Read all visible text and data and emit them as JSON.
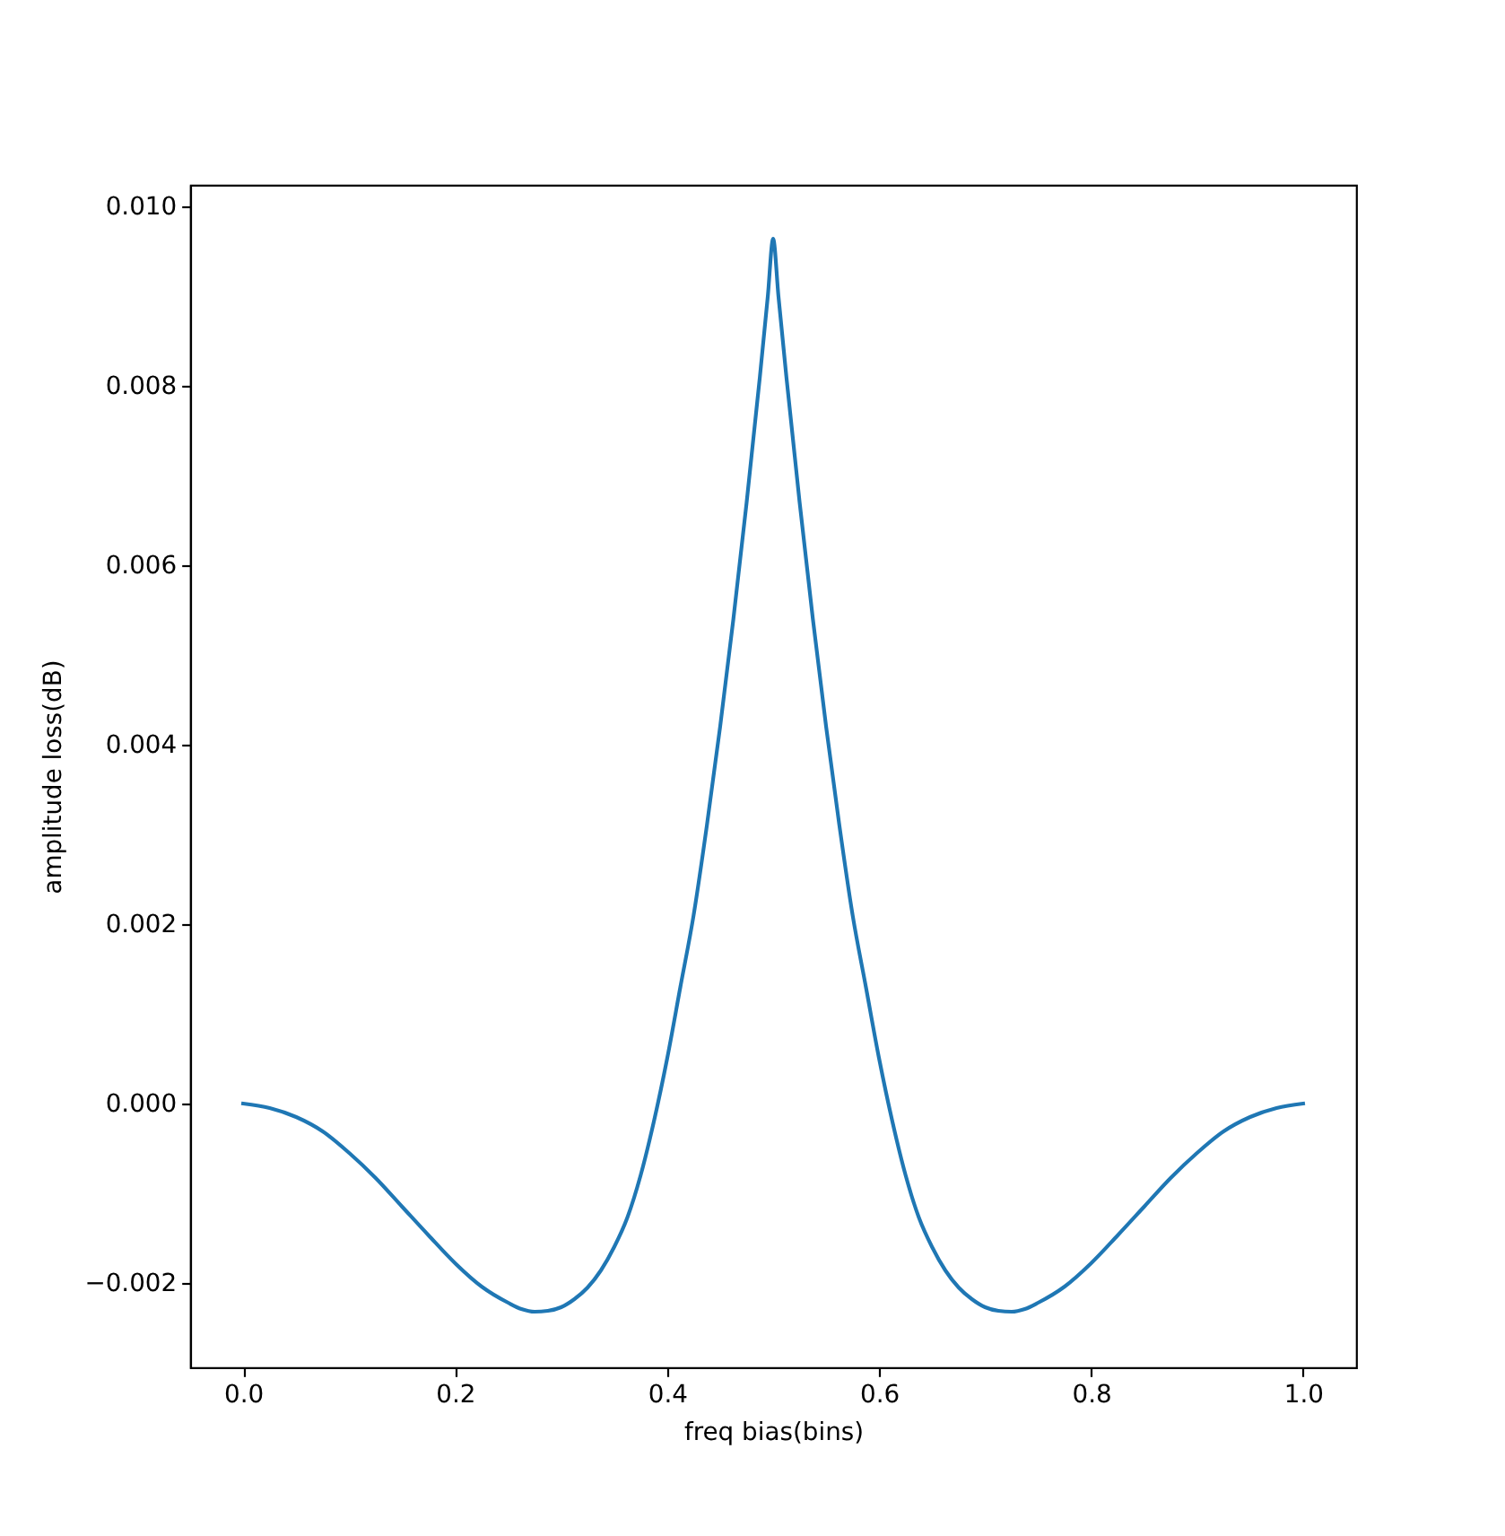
{
  "chart_data": {
    "type": "line",
    "xlabel": "freq bias(bins)",
    "ylabel": "amplitude loss(dB)",
    "x": [
      0,
      0.025,
      0.05,
      0.075,
      0.1,
      0.125,
      0.15,
      0.175,
      0.2,
      0.225,
      0.25,
      0.2625,
      0.275,
      0.2875,
      0.3,
      0.3125,
      0.325,
      0.3375,
      0.35,
      0.3625,
      0.375,
      0.3875,
      0.4,
      0.4125,
      0.425,
      0.4375,
      0.45,
      0.4625,
      0.475,
      0.4875,
      0.495,
      0.5,
      0.505,
      0.5125,
      0.525,
      0.5375,
      0.55,
      0.5625,
      0.575,
      0.5875,
      0.6,
      0.6125,
      0.625,
      0.6375,
      0.65,
      0.6625,
      0.675,
      0.6875,
      0.7,
      0.7125,
      0.725,
      0.7375,
      0.75,
      0.775,
      0.8,
      0.825,
      0.85,
      0.875,
      0.9,
      0.925,
      0.95,
      0.975,
      1
    ],
    "series": [
      {
        "color": "#1f77b4",
        "values": [
          0,
          -5e-05,
          -0.00015,
          -0.00031,
          -0.00055,
          -0.00083,
          -0.00115,
          -0.00147,
          -0.00178,
          -0.00204,
          -0.00222,
          -0.00229,
          -0.00232,
          -0.00231,
          -0.00227,
          -0.00218,
          -0.00205,
          -0.00186,
          -0.0016,
          -0.00127,
          -0.0008,
          -0.0002,
          0.0005,
          0.0013,
          0.0021,
          0.0031,
          0.0042,
          0.0054,
          0.0067,
          0.0081,
          0.009,
          0.00964,
          0.009,
          0.0081,
          0.0067,
          0.0054,
          0.0042,
          0.0031,
          0.0021,
          0.0013,
          0.0005,
          -0.0002,
          -0.0008,
          -0.00127,
          -0.0016,
          -0.00186,
          -0.00205,
          -0.00218,
          -0.00227,
          -0.00231,
          -0.00232,
          -0.00229,
          -0.00222,
          -0.00204,
          -0.00178,
          -0.00147,
          -0.00115,
          -0.00083,
          -0.00055,
          -0.00031,
          -0.00015,
          -5e-05,
          0
        ]
      }
    ],
    "xlim": [
      -0.05,
      1.05
    ],
    "ylim": [
      -0.00294,
      0.01024
    ],
    "xticks": [
      {
        "value": 0,
        "label": "0.0"
      },
      {
        "value": 0.2,
        "label": "0.2"
      },
      {
        "value": 0.4,
        "label": "0.4"
      },
      {
        "value": 0.6,
        "label": "0.6"
      },
      {
        "value": 0.8,
        "label": "0.8"
      },
      {
        "value": 1,
        "label": "1.0"
      }
    ],
    "yticks": [
      {
        "value": -0.002,
        "label": "−0.002"
      },
      {
        "value": 0,
        "label": "0.000"
      },
      {
        "value": 0.002,
        "label": "0.002"
      },
      {
        "value": 0.004,
        "label": "0.004"
      },
      {
        "value": 0.006,
        "label": "0.006"
      },
      {
        "value": 0.008,
        "label": "0.008"
      },
      {
        "value": 0.01,
        "label": "0.010"
      }
    ]
  }
}
